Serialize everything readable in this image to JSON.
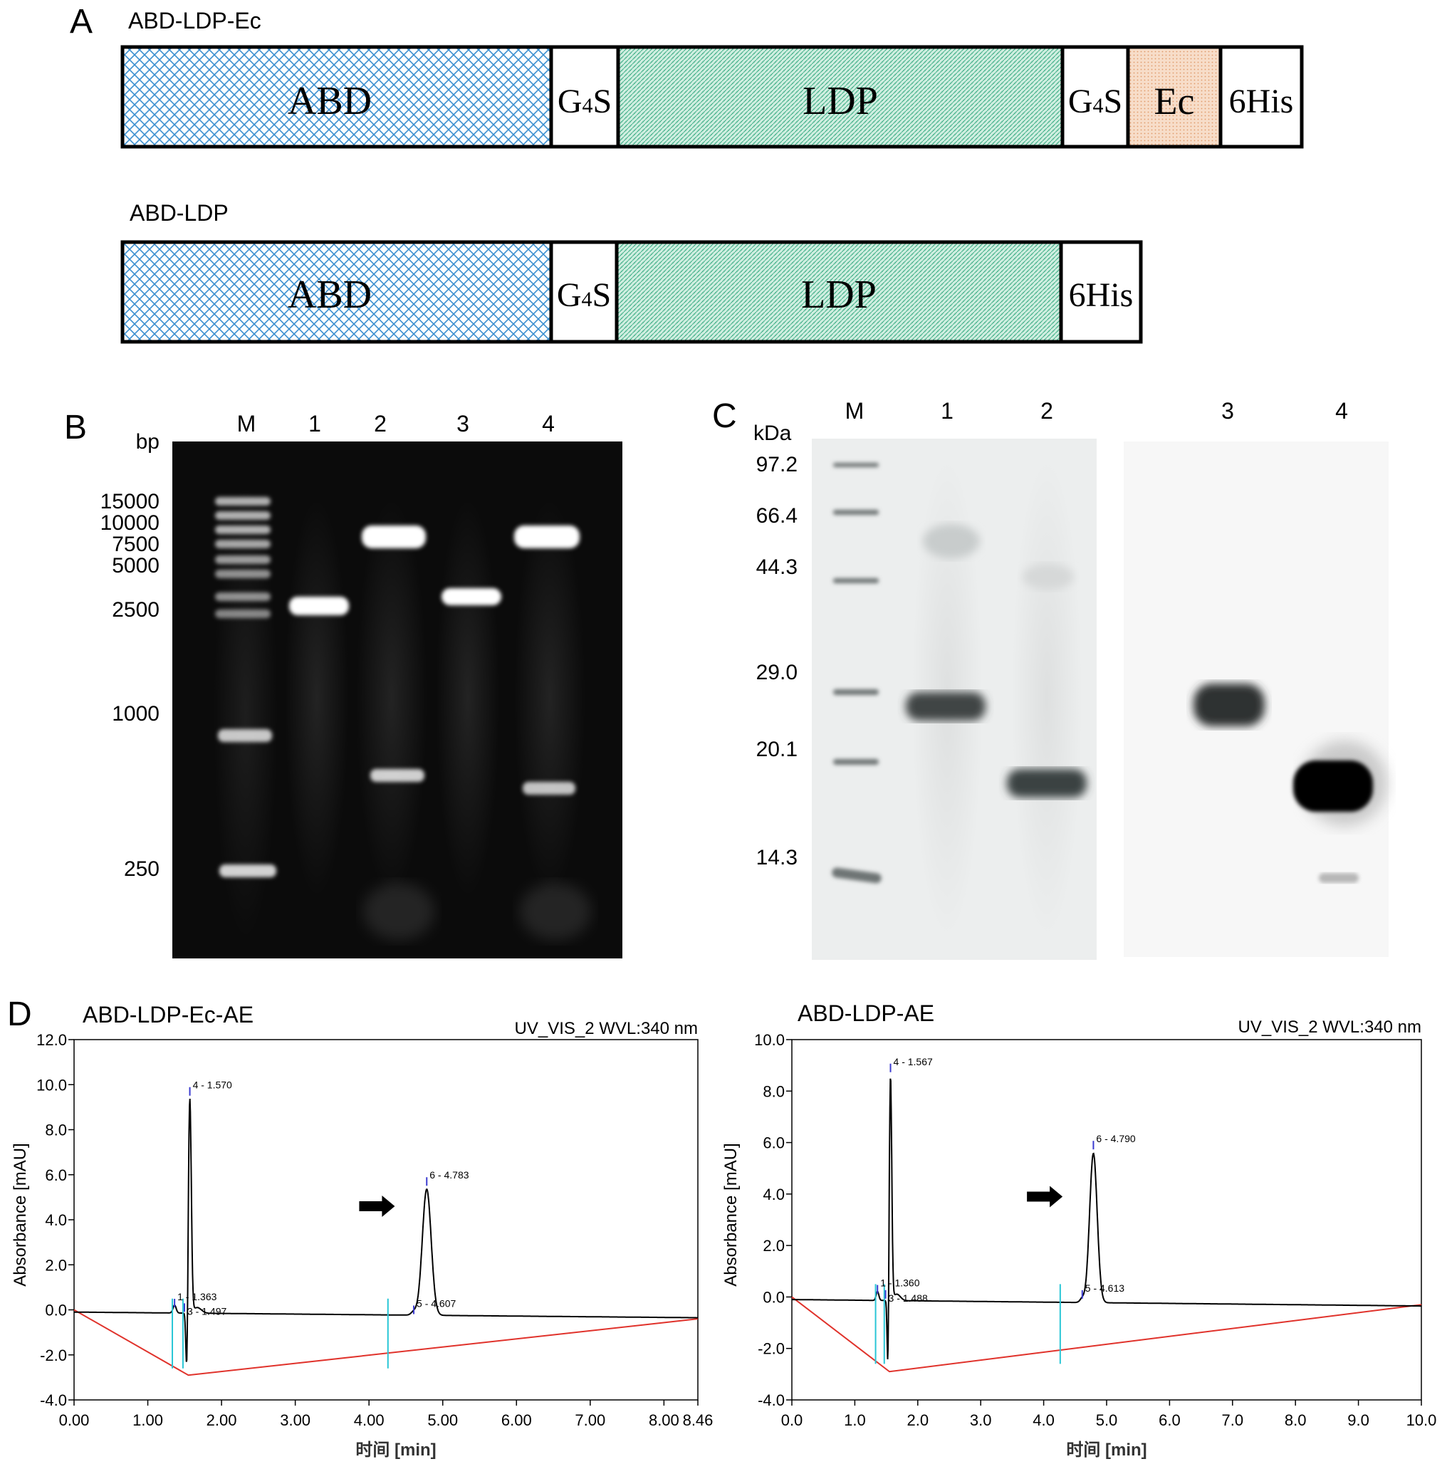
{
  "panel_letters": {
    "a": "A",
    "b": "B",
    "c": "C",
    "d": "D"
  },
  "panel_a": {
    "constructs": [
      {
        "title": "ABD-LDP-Ec",
        "segments": [
          {
            "label": "ABD",
            "kind": "abd"
          },
          {
            "label": "G",
            "sub": "4",
            "tail": "S",
            "kind": "linker"
          },
          {
            "label": "LDP",
            "kind": "ldp"
          },
          {
            "label": "G",
            "sub": "4",
            "tail": "S",
            "kind": "linker"
          },
          {
            "label": "Ec",
            "kind": "ec"
          },
          {
            "label": "6His",
            "kind": "his"
          }
        ]
      },
      {
        "title": "ABD-LDP",
        "segments": [
          {
            "label": "ABD",
            "kind": "abd"
          },
          {
            "label": "G",
            "sub": "4",
            "tail": "S",
            "kind": "linker"
          },
          {
            "label": "LDP",
            "kind": "ldp"
          },
          {
            "label": "6His",
            "kind": "his"
          }
        ]
      }
    ],
    "colors": {
      "abd": "#3b8fd0",
      "ldp": "#3fae86",
      "ec": "#e09a6a"
    }
  },
  "panel_b": {
    "unit": "bp",
    "lanes": [
      "M",
      "1",
      "2",
      "3",
      "4"
    ],
    "marker_labels": [
      "15000",
      "10000",
      "7500",
      "5000",
      "2500",
      "1000",
      "250"
    ]
  },
  "panel_c": {
    "unit": "kDa",
    "lanes": [
      "M",
      "1",
      "2",
      "3",
      "4"
    ],
    "marker_labels": [
      "97.2",
      "66.4",
      "44.3",
      "29.0",
      "20.1",
      "14.3"
    ]
  },
  "panel_d": {
    "chart_data": [
      {
        "type": "line",
        "title": "ABD-LDP-Ec-AE",
        "detector": "UV_VIS_2 WVL:340 nm",
        "xlabel": "时间 [min]",
        "ylabel": "Absorbance [mAU]",
        "xlim": [
          0,
          8.46
        ],
        "ylim": [
          -4.0,
          12.0
        ],
        "xticks": [
          "0.00",
          "1.00",
          "2.00",
          "3.00",
          "4.00",
          "5.00",
          "6.00",
          "7.00",
          "8.00",
          "8.46"
        ],
        "xtick_values": [
          0,
          1,
          2,
          3,
          4,
          5,
          6,
          7,
          8,
          8.46
        ],
        "yticks": [
          "-4.0",
          "-2.0",
          "0.0",
          "2.0",
          "4.0",
          "6.0",
          "8.0",
          "10.0",
          "12.0"
        ],
        "ytick_values": [
          -4,
          -2,
          0,
          2,
          4,
          6,
          8,
          10,
          12
        ],
        "peaks": [
          {
            "label": "1 - 1.363",
            "x": 1.363,
            "y": 0.3
          },
          {
            "label": "3 - 1.497",
            "x": 1.497,
            "y": 0.1
          },
          {
            "label": "4 - 1.570",
            "x": 1.57,
            "y": 9.7
          },
          {
            "label": "5 - 4.607",
            "x": 4.607,
            "y": 0.0
          },
          {
            "label": "6 - 4.783",
            "x": 4.783,
            "y": 5.7
          }
        ],
        "baseline": [
          [
            0,
            0.0
          ],
          [
            1.55,
            -2.9
          ],
          [
            8.46,
            -0.4
          ]
        ],
        "arrow_target": {
          "x": 4.35,
          "y": 4.6
        }
      },
      {
        "type": "line",
        "title": "ABD-LDP-AE",
        "detector": "UV_VIS_2 WVL:340 nm",
        "xlabel": "时间 [min]",
        "ylabel": "Absorbance [mAU]",
        "xlim": [
          0,
          10.0
        ],
        "ylim": [
          -4.0,
          10.0
        ],
        "xticks": [
          "0.0",
          "1.0",
          "2.0",
          "3.0",
          "4.0",
          "5.0",
          "6.0",
          "7.0",
          "8.0",
          "9.0",
          "10.0"
        ],
        "xtick_values": [
          0,
          1,
          2,
          3,
          4,
          5,
          6,
          7,
          8,
          9,
          10
        ],
        "yticks": [
          "-4.0",
          "-2.0",
          "0.0",
          "2.0",
          "4.0",
          "6.0",
          "8.0",
          "10.0"
        ],
        "ytick_values": [
          -4,
          -2,
          0,
          2,
          4,
          6,
          8,
          10
        ],
        "peaks": [
          {
            "label": "1 - 1.360",
            "x": 1.36,
            "y": 0.3
          },
          {
            "label": "3 - 1.488",
            "x": 1.488,
            "y": 0.1
          },
          {
            "label": "4 - 1.567",
            "x": 1.567,
            "y": 8.9
          },
          {
            "label": "5 - 4.613",
            "x": 4.613,
            "y": 0.1
          },
          {
            "label": "6 - 4.790",
            "x": 4.79,
            "y": 5.9
          }
        ],
        "baseline": [
          [
            0,
            0.0
          ],
          [
            1.55,
            -2.9
          ],
          [
            10.0,
            -0.3
          ]
        ],
        "arrow_target": {
          "x": 4.3,
          "y": 3.9
        }
      }
    ]
  }
}
